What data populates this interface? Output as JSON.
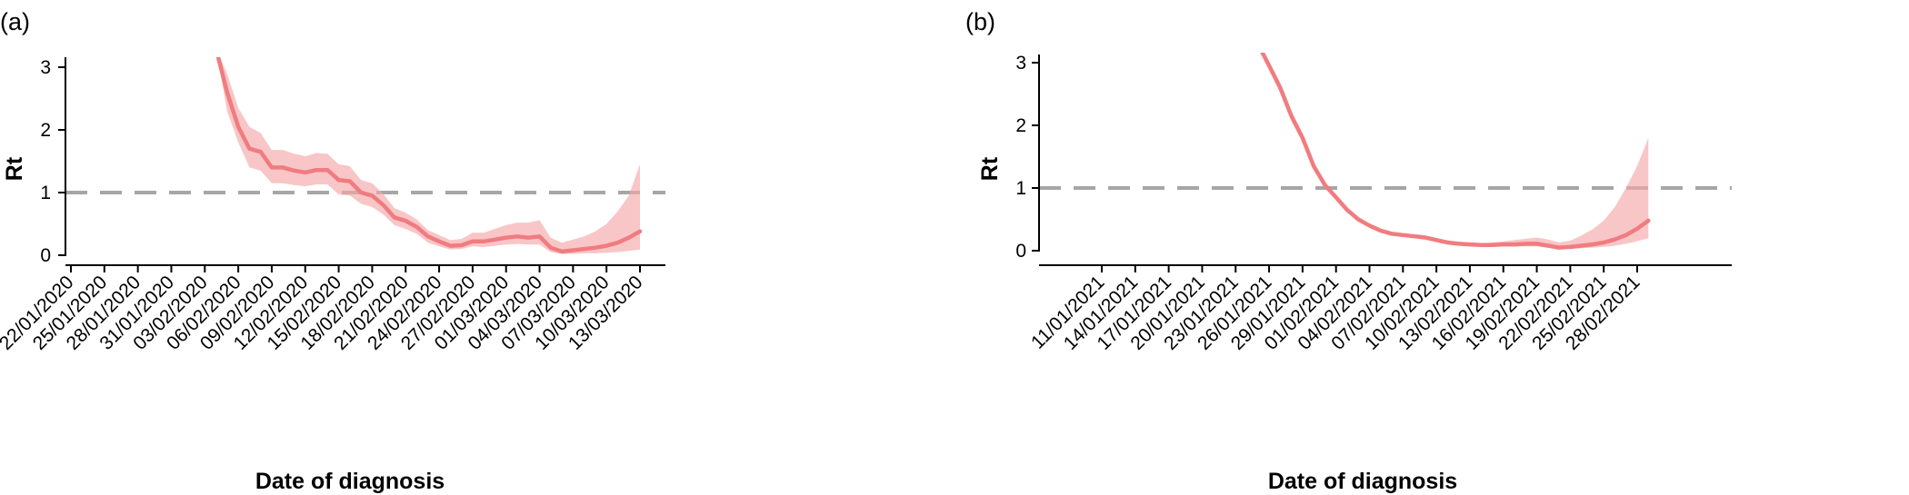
{
  "panels": [
    {
      "panel_label": "(a)",
      "chart_data": {
        "type": "line",
        "xlabel": "Date of diagnosis",
        "ylabel": "Rt",
        "ylim": [
          0,
          3
        ],
        "yticks": [
          0,
          1,
          2,
          3
        ],
        "xlim": [
          "22/01/2020",
          "13/03/2020"
        ],
        "xticks": [
          "22/01/2020",
          "25/01/2020",
          "28/01/2020",
          "31/01/2020",
          "03/02/2020",
          "06/02/2020",
          "09/02/2020",
          "12/02/2020",
          "15/02/2020",
          "18/02/2020",
          "21/02/2020",
          "24/02/2020",
          "27/02/2020",
          "01/03/2020",
          "04/03/2020",
          "07/03/2020",
          "10/03/2020",
          "13/03/2020"
        ],
        "reference_line": 1,
        "grid": false,
        "series": [
          {
            "color": "#f07c80",
            "x": [
              "04/02/2020",
              "05/02/2020",
              "06/02/2020",
              "07/02/2020",
              "08/02/2020",
              "09/02/2020",
              "10/02/2020",
              "11/02/2020",
              "12/02/2020",
              "13/02/2020",
              "14/02/2020",
              "15/02/2020",
              "16/02/2020",
              "17/02/2020",
              "18/02/2020",
              "19/02/2020",
              "20/02/2020",
              "21/02/2020",
              "22/02/2020",
              "23/02/2020",
              "24/02/2020",
              "25/02/2020",
              "26/02/2020",
              "27/02/2020",
              "28/02/2020",
              "29/02/2020",
              "01/03/2020",
              "02/03/2020",
              "03/03/2020",
              "04/03/2020",
              "05/03/2020",
              "06/03/2020",
              "07/03/2020",
              "08/03/2020",
              "09/03/2020",
              "10/03/2020",
              "11/03/2020",
              "12/03/2020",
              "13/03/2020"
            ],
            "y": [
              3.3,
              2.6,
              2.05,
              1.7,
              1.65,
              1.4,
              1.4,
              1.35,
              1.32,
              1.36,
              1.36,
              1.2,
              1.18,
              1.0,
              0.95,
              0.8,
              0.6,
              0.55,
              0.45,
              0.3,
              0.22,
              0.15,
              0.16,
              0.22,
              0.22,
              0.25,
              0.28,
              0.3,
              0.28,
              0.3,
              0.12,
              0.06,
              0.08,
              0.1,
              0.12,
              0.15,
              0.2,
              0.28,
              0.38
            ],
            "lower": [
              3.3,
              2.3,
              1.8,
              1.4,
              1.35,
              1.15,
              1.15,
              1.12,
              1.1,
              1.13,
              1.13,
              0.97,
              0.95,
              0.82,
              0.77,
              0.65,
              0.48,
              0.42,
              0.34,
              0.2,
              0.14,
              0.09,
              0.1,
              0.14,
              0.13,
              0.15,
              0.17,
              0.18,
              0.17,
              0.17,
              0.05,
              0.02,
              0.02,
              0.03,
              0.03,
              0.04,
              0.05,
              0.07,
              0.09
            ],
            "upper": [
              3.3,
              2.9,
              2.35,
              2.05,
              1.95,
              1.68,
              1.68,
              1.62,
              1.58,
              1.63,
              1.62,
              1.45,
              1.42,
              1.2,
              1.15,
              0.98,
              0.75,
              0.68,
              0.57,
              0.4,
              0.32,
              0.24,
              0.26,
              0.36,
              0.36,
              0.42,
              0.48,
              0.52,
              0.52,
              0.56,
              0.28,
              0.2,
              0.25,
              0.3,
              0.38,
              0.5,
              0.7,
              0.95,
              1.45
            ]
          }
        ]
      }
    },
    {
      "panel_label": "(b)",
      "chart_data": {
        "type": "line",
        "xlabel": "Date of diagnosis",
        "ylabel": "Rt",
        "ylim": [
          0,
          3
        ],
        "yticks": [
          0,
          1,
          2,
          3
        ],
        "xlim": [
          "11/01/2021",
          "28/02/2021"
        ],
        "xticks": [
          "11/01/2021",
          "14/01/2021",
          "17/01/2021",
          "20/01/2021",
          "23/01/2021",
          "26/01/2021",
          "29/01/2021",
          "01/02/2021",
          "04/02/2021",
          "07/02/2021",
          "10/02/2021",
          "13/02/2021",
          "16/02/2021",
          "19/02/2021",
          "22/02/2021",
          "25/02/2021",
          "28/02/2021"
        ],
        "reference_line": 1,
        "grid": false,
        "series": [
          {
            "color": "#f07c80",
            "x": [
              "25/01/2021",
              "26/01/2021",
              "27/01/2021",
              "28/01/2021",
              "29/01/2021",
              "30/01/2021",
              "31/01/2021",
              "01/02/2021",
              "02/02/2021",
              "03/02/2021",
              "04/02/2021",
              "05/02/2021",
              "06/02/2021",
              "07/02/2021",
              "08/02/2021",
              "09/02/2021",
              "10/02/2021",
              "11/02/2021",
              "12/02/2021",
              "13/02/2021",
              "14/02/2021",
              "15/02/2021",
              "16/02/2021",
              "17/02/2021",
              "18/02/2021",
              "19/02/2021",
              "20/02/2021",
              "21/02/2021",
              "22/02/2021",
              "23/02/2021",
              "24/02/2021",
              "25/02/2021",
              "26/02/2021",
              "27/02/2021",
              "28/02/2021",
              "01/03/2021"
            ],
            "y": [
              3.3,
              2.95,
              2.6,
              2.15,
              1.8,
              1.35,
              1.05,
              0.85,
              0.65,
              0.5,
              0.4,
              0.32,
              0.27,
              0.25,
              0.23,
              0.21,
              0.17,
              0.13,
              0.11,
              0.1,
              0.09,
              0.09,
              0.1,
              0.1,
              0.11,
              0.11,
              0.08,
              0.05,
              0.06,
              0.08,
              0.1,
              0.13,
              0.18,
              0.25,
              0.35,
              0.48
            ],
            "lower": [
              3.3,
              2.88,
              2.52,
              2.07,
              1.73,
              1.29,
              1.0,
              0.81,
              0.61,
              0.47,
              0.37,
              0.3,
              0.25,
              0.23,
              0.21,
              0.19,
              0.15,
              0.11,
              0.09,
              0.08,
              0.07,
              0.07,
              0.07,
              0.07,
              0.07,
              0.07,
              0.05,
              0.03,
              0.03,
              0.04,
              0.05,
              0.06,
              0.08,
              0.11,
              0.15,
              0.2
            ],
            "upper": [
              3.3,
              3.02,
              2.68,
              2.23,
              1.87,
              1.41,
              1.1,
              0.89,
              0.69,
              0.53,
              0.43,
              0.35,
              0.3,
              0.28,
              0.26,
              0.24,
              0.2,
              0.16,
              0.14,
              0.13,
              0.12,
              0.13,
              0.15,
              0.17,
              0.19,
              0.21,
              0.18,
              0.13,
              0.16,
              0.24,
              0.34,
              0.48,
              0.7,
              1.0,
              1.35,
              1.8
            ]
          }
        ]
      }
    }
  ]
}
